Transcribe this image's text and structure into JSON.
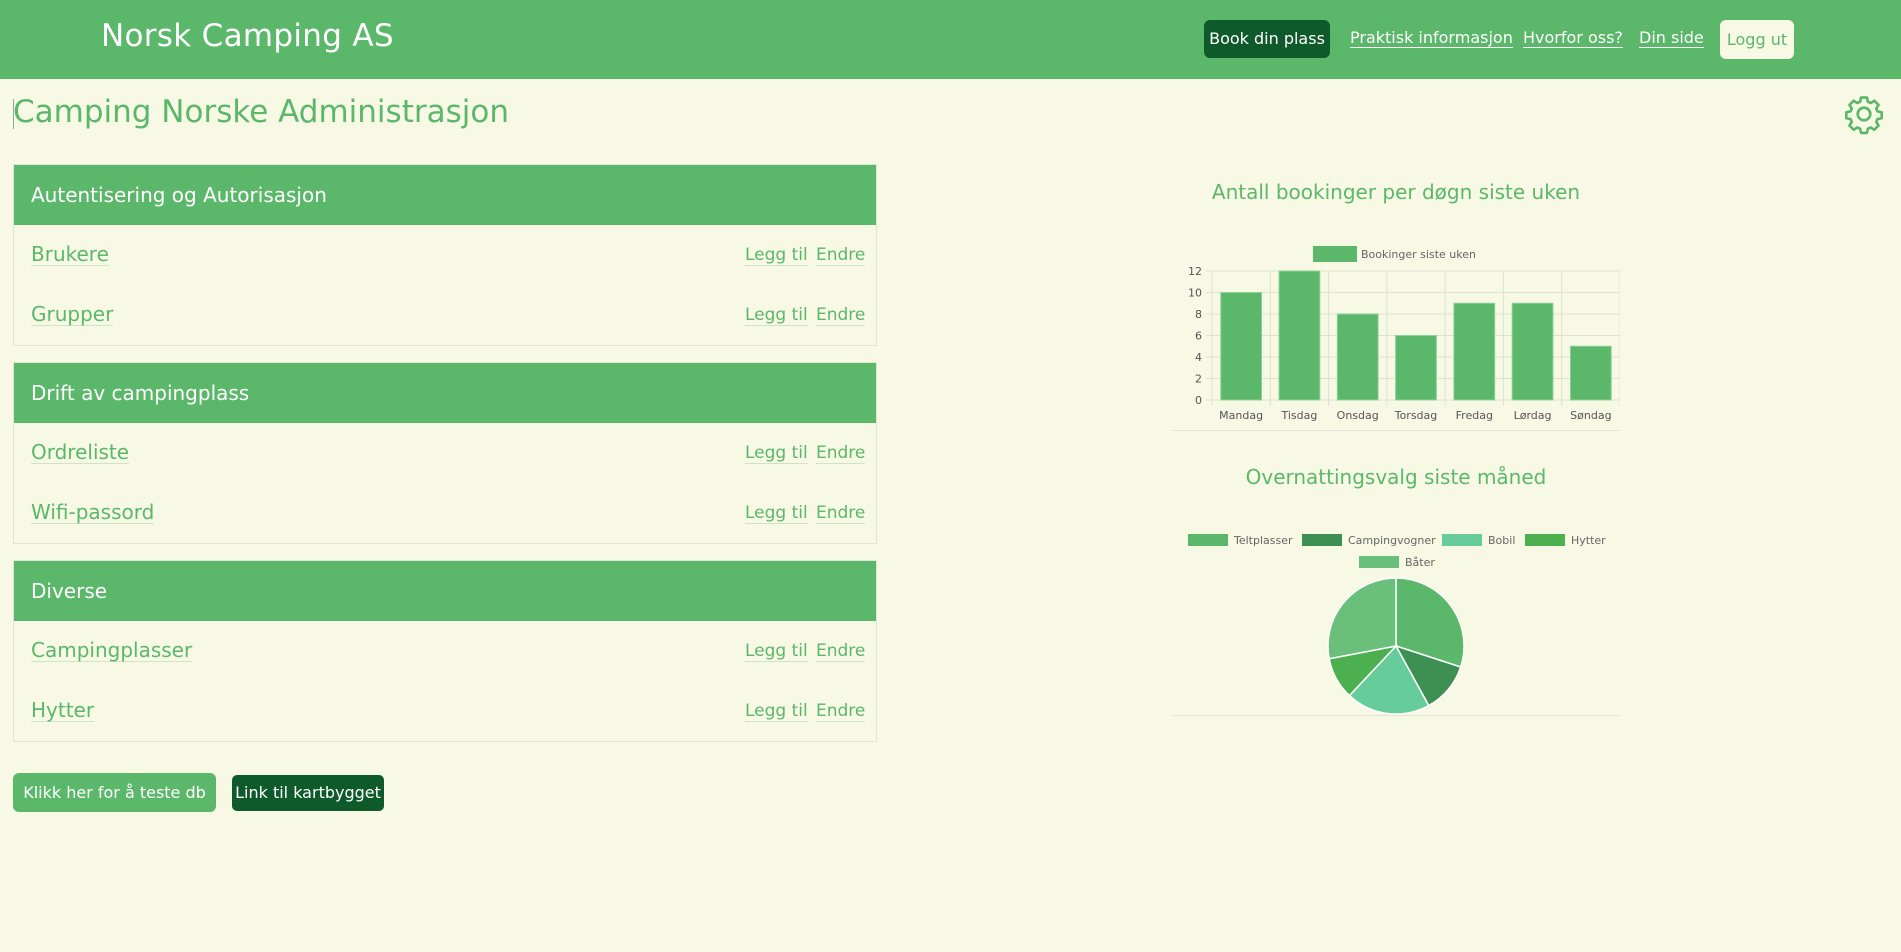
{
  "header": {
    "brand": "Norsk Camping AS",
    "nav": {
      "book": "Book din plass",
      "info": "Praktisk informasjon",
      "why": "Hvorfor oss?",
      "mypage": "Din side",
      "logout": "Logg ut"
    }
  },
  "page": {
    "title": "Camping Norske Administrasjon",
    "settings_icon": "gear-icon"
  },
  "panels": [
    {
      "title": "Autentisering og Autorisasjon",
      "rows": [
        {
          "label": "Brukere",
          "add": "Legg til",
          "edit": "Endre"
        },
        {
          "label": "Grupper",
          "add": "Legg til",
          "edit": "Endre"
        }
      ]
    },
    {
      "title": "Drift av campingplass",
      "rows": [
        {
          "label": "Ordreliste",
          "add": "Legg til",
          "edit": "Endre"
        },
        {
          "label": "Wifi-passord",
          "add": "Legg til",
          "edit": "Endre"
        }
      ]
    },
    {
      "title": "Diverse",
      "rows": [
        {
          "label": "Campingplasser",
          "add": "Legg til",
          "edit": "Endre"
        },
        {
          "label": "Hytter",
          "add": "Legg til",
          "edit": "Endre"
        }
      ]
    }
  ],
  "buttons": {
    "test_db": "Klikk her for å teste db",
    "map_link": "Link til kartbygget"
  },
  "colors": {
    "primary": "#5bb76a",
    "dark": "#0f5a2b",
    "background": "#f7f9e5"
  },
  "chart_data": [
    {
      "type": "bar",
      "title": "Antall bookinger per døgn siste uken",
      "categories": [
        "Mandag",
        "Tisdag",
        "Onsdag",
        "Torsdag",
        "Fredag",
        "Lørdag",
        "Søndag"
      ],
      "series": [
        {
          "name": "Bookinger siste uken",
          "values": [
            10,
            12,
            8,
            6,
            9,
            9,
            5
          ],
          "color": "#5bb76a"
        }
      ],
      "ylim": [
        0,
        12
      ],
      "yticks": [
        0,
        2,
        4,
        6,
        8,
        10,
        12
      ],
      "grid": true,
      "legend": "top"
    },
    {
      "type": "pie",
      "title": "Overnattingsvalg siste måned",
      "labels": [
        "Teltplasser",
        "Campingvogner",
        "Bobil",
        "Hytter",
        "Båter"
      ],
      "values": [
        30,
        12,
        20,
        10,
        28
      ],
      "colors": [
        "#5bb76a",
        "#3d8f52",
        "#66cc99",
        "#4caf50",
        "#6abf7a"
      ],
      "legend": "top"
    }
  ]
}
